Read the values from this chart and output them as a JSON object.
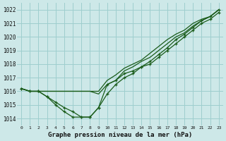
{
  "title": "Graphe pression niveau de la mer (hPa)",
  "background_color": "#cde8e8",
  "grid_color": "#9ecece",
  "line_color": "#1a5c1a",
  "x_ticks": [
    0,
    1,
    2,
    3,
    4,
    5,
    6,
    7,
    8,
    9,
    10,
    11,
    12,
    13,
    14,
    15,
    16,
    17,
    18,
    19,
    20,
    21,
    22,
    23
  ],
  "ylim": [
    1013.5,
    1022.5
  ],
  "yticks": [
    1014,
    1015,
    1016,
    1017,
    1018,
    1019,
    1020,
    1021,
    1022
  ],
  "series": [
    [
      1016.2,
      1016.0,
      1016.0,
      1015.6,
      1015.2,
      1014.8,
      1014.5,
      1014.1,
      1014.1,
      1014.8,
      1015.8,
      1016.5,
      1017.0,
      1017.3,
      1017.8,
      1018.0,
      1018.5,
      1019.0,
      1019.5,
      1020.0,
      1020.5,
      1021.0,
      1021.3,
      1021.8
    ],
    [
      1016.2,
      1016.0,
      1016.0,
      1016.0,
      1016.0,
      1016.0,
      1016.0,
      1016.0,
      1016.0,
      1015.8,
      1016.5,
      1016.8,
      1017.5,
      1017.8,
      1018.2,
      1018.5,
      1019.0,
      1019.5,
      1020.0,
      1020.3,
      1020.8,
      1021.2,
      1021.5,
      1022.0
    ],
    [
      1016.2,
      1016.0,
      1016.0,
      1016.0,
      1016.0,
      1016.0,
      1016.0,
      1016.0,
      1016.0,
      1016.0,
      1016.8,
      1017.2,
      1017.7,
      1018.0,
      1018.3,
      1018.8,
      1019.3,
      1019.8,
      1020.2,
      1020.5,
      1021.0,
      1021.3,
      1021.5,
      1022.0
    ],
    [
      1016.2,
      1016.0,
      1016.0,
      1015.6,
      1015.0,
      1014.5,
      1014.1,
      1014.1,
      1014.1,
      1014.8,
      1016.5,
      1016.8,
      1017.3,
      1017.5,
      1017.8,
      1018.2,
      1018.7,
      1019.2,
      1019.8,
      1020.2,
      1020.7,
      1021.2,
      1021.5,
      1022.0
    ]
  ],
  "series_no_marker": [
    1,
    2
  ],
  "ylabel_fontsize": 5.5,
  "xlabel_fontsize": 6.5
}
